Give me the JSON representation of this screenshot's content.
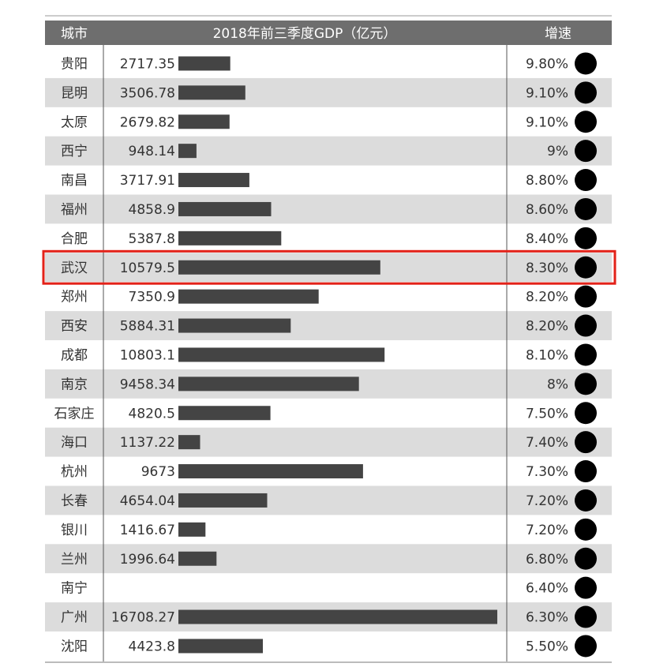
{
  "header": {
    "city": "城市",
    "gdp": "2018年前三季度GDP（亿元）",
    "growth": "增速"
  },
  "highlight_city": "武汉",
  "colors": {
    "header_bg": "#6e6e6e",
    "stripe": "#dcdcdc",
    "bar": "#444444",
    "dot": "#000000",
    "highlight_border": "#e32219"
  },
  "chart_data": {
    "type": "table",
    "columns": [
      "城市",
      "2018年前三季度GDP（亿元）",
      "增速"
    ],
    "rows": [
      {
        "city": "贵阳",
        "gdp": 2717.35,
        "gdp_label": "2717.35",
        "growth": "9.80%"
      },
      {
        "city": "昆明",
        "gdp": 3506.78,
        "gdp_label": "3506.78",
        "growth": "9.10%"
      },
      {
        "city": "太原",
        "gdp": 2679.82,
        "gdp_label": "2679.82",
        "growth": "9.10%"
      },
      {
        "city": "西宁",
        "gdp": 948.14,
        "gdp_label": "948.14",
        "growth": "9%"
      },
      {
        "city": "南昌",
        "gdp": 3717.91,
        "gdp_label": "3717.91",
        "growth": "8.80%"
      },
      {
        "city": "福州",
        "gdp": 4858.9,
        "gdp_label": "4858.9",
        "growth": "8.60%"
      },
      {
        "city": "合肥",
        "gdp": 5387.8,
        "gdp_label": "5387.8",
        "growth": "8.40%"
      },
      {
        "city": "武汉",
        "gdp": 10579.5,
        "gdp_label": "10579.5",
        "growth": "8.30%"
      },
      {
        "city": "郑州",
        "gdp": 7350.9,
        "gdp_label": "7350.9",
        "growth": "8.20%"
      },
      {
        "city": "西安",
        "gdp": 5884.31,
        "gdp_label": "5884.31",
        "growth": "8.20%"
      },
      {
        "city": "成都",
        "gdp": 10803.1,
        "gdp_label": "10803.1",
        "growth": "8.10%"
      },
      {
        "city": "南京",
        "gdp": 9458.34,
        "gdp_label": "9458.34",
        "growth": "8%"
      },
      {
        "city": "石家庄",
        "gdp": 4820.5,
        "gdp_label": "4820.5",
        "growth": "7.50%"
      },
      {
        "city": "海口",
        "gdp": 1137.22,
        "gdp_label": "1137.22",
        "growth": "7.40%"
      },
      {
        "city": "杭州",
        "gdp": 9673,
        "gdp_label": "9673",
        "growth": "7.30%"
      },
      {
        "city": "长春",
        "gdp": 4654.04,
        "gdp_label": "4654.04",
        "growth": "7.20%"
      },
      {
        "city": "银川",
        "gdp": 1416.67,
        "gdp_label": "1416.67",
        "growth": "7.20%"
      },
      {
        "city": "兰州",
        "gdp": 1996.64,
        "gdp_label": "1996.64",
        "growth": "6.80%"
      },
      {
        "city": "南宁",
        "gdp": null,
        "gdp_label": "",
        "growth": "6.40%"
      },
      {
        "city": "广州",
        "gdp": 16708.27,
        "gdp_label": "16708.27",
        "growth": "6.30%"
      },
      {
        "city": "沈阳",
        "gdp": 4423.8,
        "gdp_label": "4423.8",
        "growth": "5.50%"
      }
    ]
  }
}
